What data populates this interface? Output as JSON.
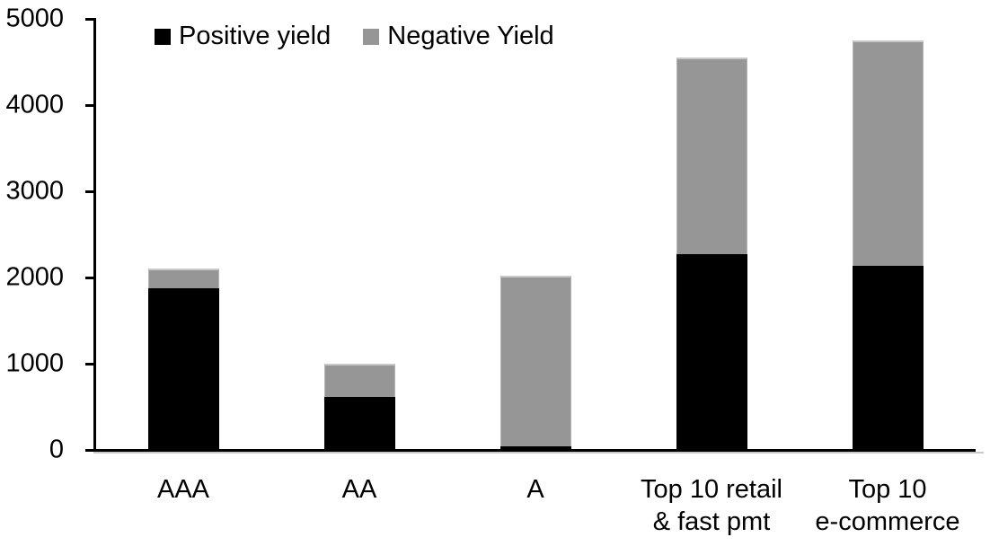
{
  "chart_data": {
    "type": "bar",
    "stacked": true,
    "title": "",
    "xlabel": "",
    "ylabel": "",
    "grid": false,
    "legend_position": "top-left",
    "ylim": [
      0,
      5000
    ],
    "yticks": [
      0,
      1000,
      2000,
      3000,
      4000,
      5000
    ],
    "categories": [
      "AAA",
      "AA",
      "A",
      "Top 10 retail\n& fast pmt",
      "Top 10\ne-commerce"
    ],
    "series": [
      {
        "name": "Positive yield",
        "color": "#000000",
        "values": [
          1880,
          610,
          40,
          2270,
          2140
        ]
      },
      {
        "name": "Negative Yield",
        "color": "#969696",
        "values": [
          220,
          390,
          1980,
          2280,
          2610
        ]
      }
    ],
    "axis_color": "#000000",
    "background_color": "#ffffff"
  }
}
